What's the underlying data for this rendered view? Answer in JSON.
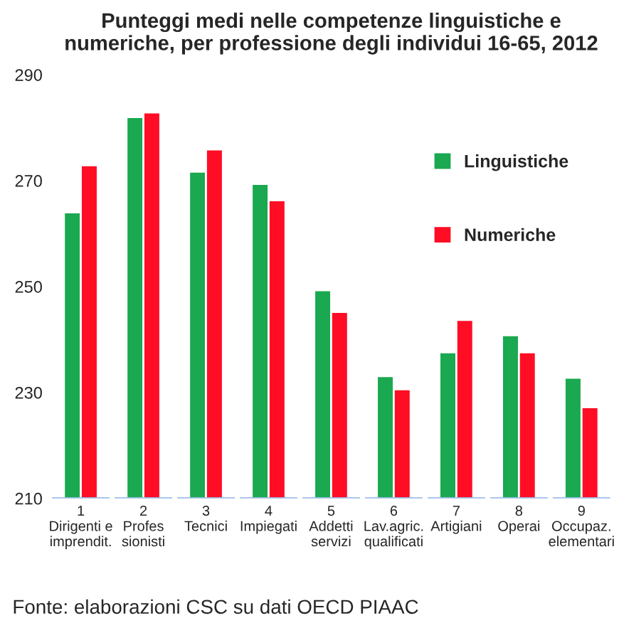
{
  "chart_data": {
    "type": "bar",
    "title": "Punteggi medi nelle competenze linguistiche e numeriche, per professione degli individui 16-65, 2012",
    "categories": [
      "1\nDirigenti e\nimprendit.",
      "2\nProfes\nsionisti",
      "3\nTecnici",
      "4\nImpiegati",
      "5\nAddetti\nservizi",
      "6\nLav.agric.\nqualificati",
      "7\nArtigiani",
      "8\nOperai",
      "9\nOccupaz.\nelementari"
    ],
    "series": [
      {
        "name": "Linguistiche",
        "color": "#1aa850",
        "values": [
          264.0,
          282.0,
          271.7,
          269.4,
          249.3,
          233.1,
          237.6,
          240.8,
          232.8
        ]
      },
      {
        "name": "Numeriche",
        "color": "#ff0d25",
        "values": [
          272.9,
          282.9,
          275.9,
          266.3,
          245.2,
          230.6,
          243.7,
          237.6,
          227.2
        ]
      }
    ],
    "ylim": [
      210,
      290
    ],
    "yticks": [
      210,
      230,
      250,
      270,
      290
    ],
    "grid": false,
    "legend": "top right",
    "annotations": [
      "Fonte: elaborazioni CSC su dati OECD PIAAC"
    ]
  }
}
